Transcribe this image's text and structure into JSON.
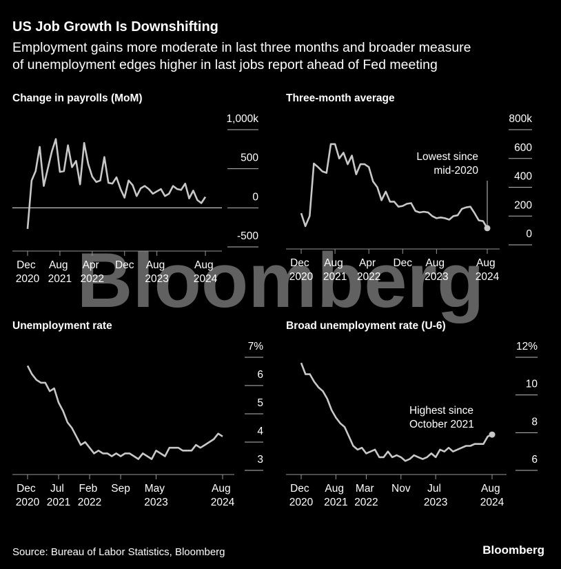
{
  "title": "US Job Growth Is Downshifting",
  "subtitle": [
    "Employment gains more moderate in last three months and broader measure",
    "of unemployment edges higher in last jobs report ahead of Fed meeting"
  ],
  "watermark": "Bloomberg",
  "source": "Source: Bureau of Labor Statistics, Bloomberg",
  "logo": "Bloomberg",
  "chart_data": [
    {
      "type": "line",
      "title": "Change in payrolls (MoM)",
      "color": "#c8c8c8",
      "x": [
        "2020-12",
        "2021-01",
        "2021-02",
        "2021-03",
        "2021-04",
        "2021-05",
        "2021-06",
        "2021-07",
        "2021-08",
        "2021-09",
        "2021-10",
        "2021-11",
        "2021-12",
        "2022-01",
        "2022-02",
        "2022-03",
        "2022-04",
        "2022-05",
        "2022-06",
        "2022-07",
        "2022-08",
        "2022-09",
        "2022-10",
        "2022-11",
        "2022-12",
        "2023-01",
        "2023-02",
        "2023-03",
        "2023-04",
        "2023-05",
        "2023-06",
        "2023-07",
        "2023-08",
        "2023-09",
        "2023-10",
        "2023-11",
        "2023-12",
        "2024-01",
        "2024-02",
        "2024-03",
        "2024-04",
        "2024-05",
        "2024-06",
        "2024-07",
        "2024-08"
      ],
      "values": [
        -270,
        350,
        470,
        780,
        280,
        500,
        720,
        880,
        460,
        470,
        800,
        520,
        600,
        300,
        830,
        560,
        400,
        330,
        350,
        650,
        320,
        310,
        390,
        240,
        130,
        350,
        290,
        150,
        250,
        280,
        240,
        180,
        210,
        240,
        150,
        180,
        280,
        240,
        230,
        310,
        120,
        220,
        100,
        60,
        140
      ],
      "ylim": [
        -500,
        1000
      ],
      "yticks": [
        -500,
        0,
        500,
        {
          "value": 1000,
          "label": "1,000k"
        }
      ],
      "xticks": [
        {
          "value": "2020-12",
          "label": "Dec 2020"
        },
        {
          "value": "2021-08",
          "label": "Aug 2021"
        },
        {
          "value": "2022-04",
          "label": "Apr 2022"
        },
        {
          "value": "2022-12",
          "label": "Dec"
        },
        {
          "value": "2023-08",
          "label": "Aug 2023"
        },
        {
          "value": "2024-08",
          "label": "Aug 2024"
        }
      ],
      "highlight_last": false
    },
    {
      "type": "line",
      "title": "Three-month average",
      "color": "#c8c8c8",
      "x": [
        "2020-12",
        "2021-01",
        "2021-02",
        "2021-03",
        "2021-04",
        "2021-05",
        "2021-06",
        "2021-07",
        "2021-08",
        "2021-09",
        "2021-10",
        "2021-11",
        "2021-12",
        "2022-01",
        "2022-02",
        "2022-03",
        "2022-04",
        "2022-05",
        "2022-06",
        "2022-07",
        "2022-08",
        "2022-09",
        "2022-10",
        "2022-11",
        "2022-12",
        "2023-01",
        "2023-02",
        "2023-03",
        "2023-04",
        "2023-05",
        "2023-06",
        "2023-07",
        "2023-08",
        "2023-09",
        "2023-10",
        "2023-11",
        "2023-12",
        "2024-01",
        "2024-02",
        "2024-03",
        "2024-04",
        "2024-05",
        "2024-06",
        "2024-07",
        "2024-08"
      ],
      "values": [
        220,
        130,
        200,
        565,
        540,
        510,
        500,
        700,
        700,
        600,
        640,
        560,
        620,
        490,
        560,
        560,
        540,
        440,
        400,
        310,
        370,
        300,
        300,
        265,
        270,
        285,
        290,
        235,
        225,
        230,
        225,
        200,
        185,
        190,
        185,
        175,
        200,
        205,
        250,
        260,
        265,
        220,
        170,
        165,
        116
      ],
      "ylim": [
        0,
        800
      ],
      "yticks": [
        0,
        200,
        400,
        600,
        {
          "value": 800,
          "label": "800k"
        }
      ],
      "xticks": [
        {
          "value": "2020-12",
          "label": "Dec 2020"
        },
        {
          "value": "2021-08",
          "label": "Aug 2021"
        },
        {
          "value": "2022-04",
          "label": "Apr 2022"
        },
        {
          "value": "2022-12",
          "label": "Dec"
        },
        {
          "value": "2023-08",
          "label": "Aug 2023"
        },
        {
          "value": "2024-08",
          "label": "Aug 2024"
        }
      ],
      "annotation": [
        "Lowest since",
        "mid-2020"
      ],
      "highlight_last": true
    },
    {
      "type": "line",
      "title": "Unemployment rate",
      "color": "#c8c8c8",
      "x": [
        "2020-12",
        "2021-01",
        "2021-02",
        "2021-03",
        "2021-04",
        "2021-05",
        "2021-06",
        "2021-07",
        "2021-08",
        "2021-09",
        "2021-10",
        "2021-11",
        "2021-12",
        "2022-01",
        "2022-02",
        "2022-03",
        "2022-04",
        "2022-05",
        "2022-06",
        "2022-07",
        "2022-08",
        "2022-09",
        "2022-10",
        "2022-11",
        "2022-12",
        "2023-01",
        "2023-02",
        "2023-03",
        "2023-04",
        "2023-05",
        "2023-06",
        "2023-07",
        "2023-08",
        "2023-09",
        "2023-10",
        "2023-11",
        "2023-12",
        "2024-01",
        "2024-02",
        "2024-03",
        "2024-04",
        "2024-05",
        "2024-06",
        "2024-07",
        "2024-08"
      ],
      "values": [
        6.7,
        6.4,
        6.2,
        6.1,
        6.1,
        5.8,
        5.9,
        5.4,
        5.1,
        4.7,
        4.5,
        4.2,
        3.9,
        4.0,
        3.8,
        3.6,
        3.7,
        3.6,
        3.6,
        3.5,
        3.6,
        3.5,
        3.6,
        3.6,
        3.5,
        3.4,
        3.6,
        3.5,
        3.4,
        3.7,
        3.6,
        3.5,
        3.8,
        3.8,
        3.8,
        3.7,
        3.7,
        3.7,
        3.9,
        3.8,
        3.9,
        4.0,
        4.1,
        4.3,
        4.2
      ],
      "ylim": [
        3,
        7
      ],
      "yticks": [
        3,
        4,
        5,
        6,
        {
          "value": 7,
          "label": "7%"
        }
      ],
      "xticks": [
        {
          "value": "2020-12",
          "label": "Dec 2020"
        },
        {
          "value": "2021-07",
          "label": "Jul 2021"
        },
        {
          "value": "2022-02",
          "label": "Feb 2022"
        },
        {
          "value": "2022-09",
          "label": "Sep"
        },
        {
          "value": "2023-05",
          "label": "May 2023"
        },
        {
          "value": "2024-08",
          "label": "Aug 2024"
        }
      ],
      "highlight_last": false
    },
    {
      "type": "line",
      "title": "Broad unemployment rate (U-6)",
      "color": "#c8c8c8",
      "x": [
        "2020-12",
        "2021-01",
        "2021-02",
        "2021-03",
        "2021-04",
        "2021-05",
        "2021-06",
        "2021-07",
        "2021-08",
        "2021-09",
        "2021-10",
        "2021-11",
        "2021-12",
        "2022-01",
        "2022-02",
        "2022-03",
        "2022-04",
        "2022-05",
        "2022-06",
        "2022-07",
        "2022-08",
        "2022-09",
        "2022-10",
        "2022-11",
        "2022-12",
        "2023-01",
        "2023-02",
        "2023-03",
        "2023-04",
        "2023-05",
        "2023-06",
        "2023-07",
        "2023-08",
        "2023-09",
        "2023-10",
        "2023-11",
        "2023-12",
        "2024-01",
        "2024-02",
        "2024-03",
        "2024-04",
        "2024-05",
        "2024-06",
        "2024-07",
        "2024-08"
      ],
      "values": [
        11.7,
        11.1,
        11.1,
        10.7,
        10.4,
        10.2,
        9.8,
        9.2,
        8.8,
        8.5,
        8.3,
        7.8,
        7.3,
        7.1,
        7.2,
        6.9,
        7.0,
        7.1,
        6.7,
        6.7,
        7.0,
        6.7,
        6.8,
        6.7,
        6.5,
        6.6,
        6.8,
        6.7,
        6.6,
        6.7,
        6.9,
        6.7,
        7.1,
        7.0,
        7.2,
        7.0,
        7.1,
        7.2,
        7.3,
        7.3,
        7.4,
        7.4,
        7.4,
        7.8,
        7.9
      ],
      "ylim": [
        6,
        12
      ],
      "yticks": [
        6,
        8,
        10,
        {
          "value": 12,
          "label": "12%"
        }
      ],
      "xticks": [
        {
          "value": "2020-12",
          "label": "Dec 2020"
        },
        {
          "value": "2021-08",
          "label": "Aug 2021"
        },
        {
          "value": "2022-03",
          "label": "Mar 2022"
        },
        {
          "value": "2022-11",
          "label": "Nov"
        },
        {
          "value": "2023-07",
          "label": "Jul 2023"
        },
        {
          "value": "2024-08",
          "label": "Aug 2024"
        }
      ],
      "annotation": [
        "Highest since",
        "October 2021"
      ],
      "highlight_last": true
    }
  ]
}
